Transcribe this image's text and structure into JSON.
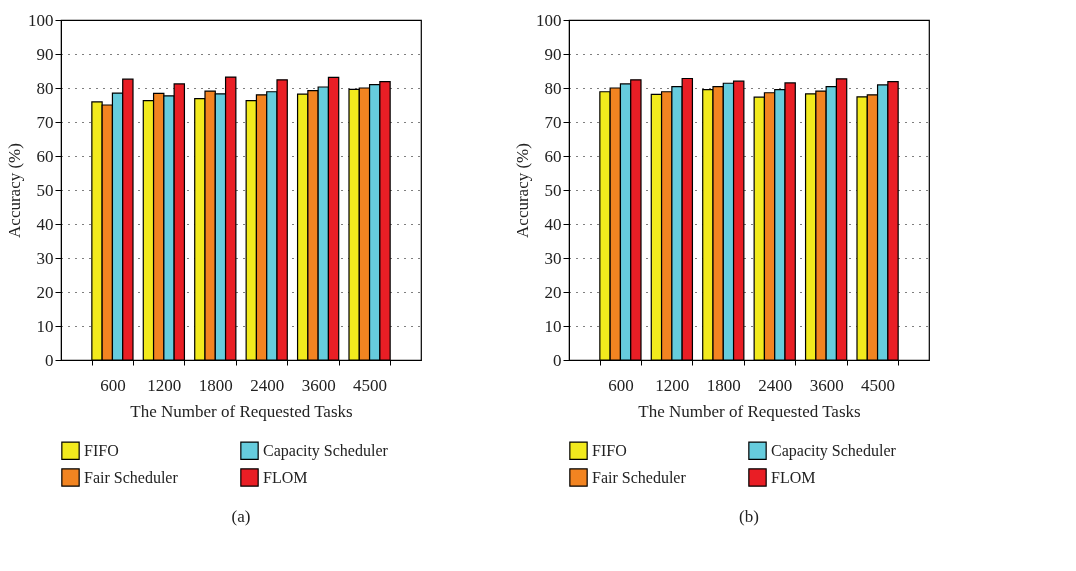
{
  "chart_data": [
    {
      "type": "bar",
      "title": "(a)",
      "xlabel": "The Number of Requested Tasks",
      "ylabel": "Accuracy (%)",
      "categories": [
        "600",
        "1200",
        "1800",
        "2400",
        "3600",
        "4500"
      ],
      "series": [
        {
          "name": "FIFO",
          "color": "#f2ea1d",
          "values": [
            75.9,
            76.3,
            76.9,
            76.3,
            78.2,
            79.6
          ]
        },
        {
          "name": "Fair Scheduler",
          "color": "#f28421",
          "values": [
            75.0,
            78.4,
            79.1,
            78.0,
            79.2,
            80.0
          ]
        },
        {
          "name": "Capacity Scheduler",
          "color": "#66ccdd",
          "values": [
            78.5,
            77.7,
            78.3,
            78.9,
            80.3,
            81.0
          ]
        },
        {
          "name": "FLOM",
          "color": "#e91e25",
          "values": [
            82.6,
            81.2,
            83.2,
            82.4,
            83.1,
            81.9
          ]
        }
      ],
      "ylim": [
        0,
        100
      ],
      "yticks": [
        0,
        10,
        20,
        30,
        40,
        50,
        60,
        70,
        80,
        90,
        100
      ],
      "grid": "y",
      "legend": "bottom"
    },
    {
      "type": "bar",
      "title": "(b)",
      "xlabel": "The Number of Requested Tasks",
      "ylabel": "Accuracy (%)",
      "categories": [
        "600",
        "1200",
        "1800",
        "2400",
        "3600",
        "4500"
      ],
      "series": [
        {
          "name": "FIFO",
          "color": "#f2ea1d",
          "values": [
            78.9,
            78.1,
            79.5,
            77.3,
            78.3,
            77.4
          ]
        },
        {
          "name": "Fair Scheduler",
          "color": "#f28421",
          "values": [
            80.0,
            78.9,
            80.4,
            78.6,
            79.1,
            78.0
          ]
        },
        {
          "name": "Capacity Scheduler",
          "color": "#66ccdd",
          "values": [
            81.2,
            80.4,
            81.4,
            79.5,
            80.4,
            80.9
          ]
        },
        {
          "name": "FLOM",
          "color": "#e91e25",
          "values": [
            82.4,
            82.8,
            82.0,
            81.5,
            82.7,
            81.9
          ]
        }
      ],
      "ylim": [
        0,
        100
      ],
      "yticks": [
        0,
        10,
        20,
        30,
        40,
        50,
        60,
        70,
        80,
        90,
        100
      ],
      "grid": "y",
      "legend": "bottom"
    }
  ]
}
